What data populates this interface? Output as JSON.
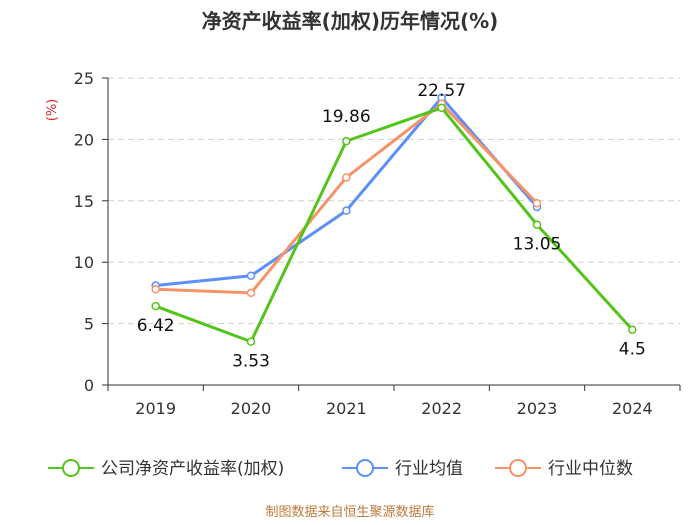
{
  "chart_data": {
    "type": "line",
    "title": "净资产收益率(加权)历年情况(%)",
    "ylabel": "(%)",
    "ylim": [
      0,
      25
    ],
    "yticks": [
      0,
      5,
      10,
      15,
      20,
      25
    ],
    "categories": [
      "2019",
      "2020",
      "2021",
      "2022",
      "2023",
      "2024"
    ],
    "grid": true,
    "legend_position": "bottom",
    "series": [
      {
        "name": "公司净资产收益率(加权)",
        "color": "#52c41a",
        "values": [
          6.42,
          3.53,
          19.86,
          22.57,
          13.05,
          4.5
        ],
        "data_labels": [
          "6.42",
          "3.53",
          "19.86",
          "22.57",
          "13.05",
          "4.5"
        ]
      },
      {
        "name": "行业均值",
        "color": "#5b8ff9",
        "values": [
          8.1,
          8.9,
          14.2,
          23.4,
          14.5,
          null
        ]
      },
      {
        "name": "行业中位数",
        "color": "#f6936a",
        "values": [
          7.8,
          7.5,
          16.9,
          22.9,
          14.8,
          null
        ]
      }
    ]
  },
  "ylabel_color": "#e02020",
  "source": {
    "text": "制图数据来自恒生聚源数据库",
    "color": "#c0783c"
  }
}
